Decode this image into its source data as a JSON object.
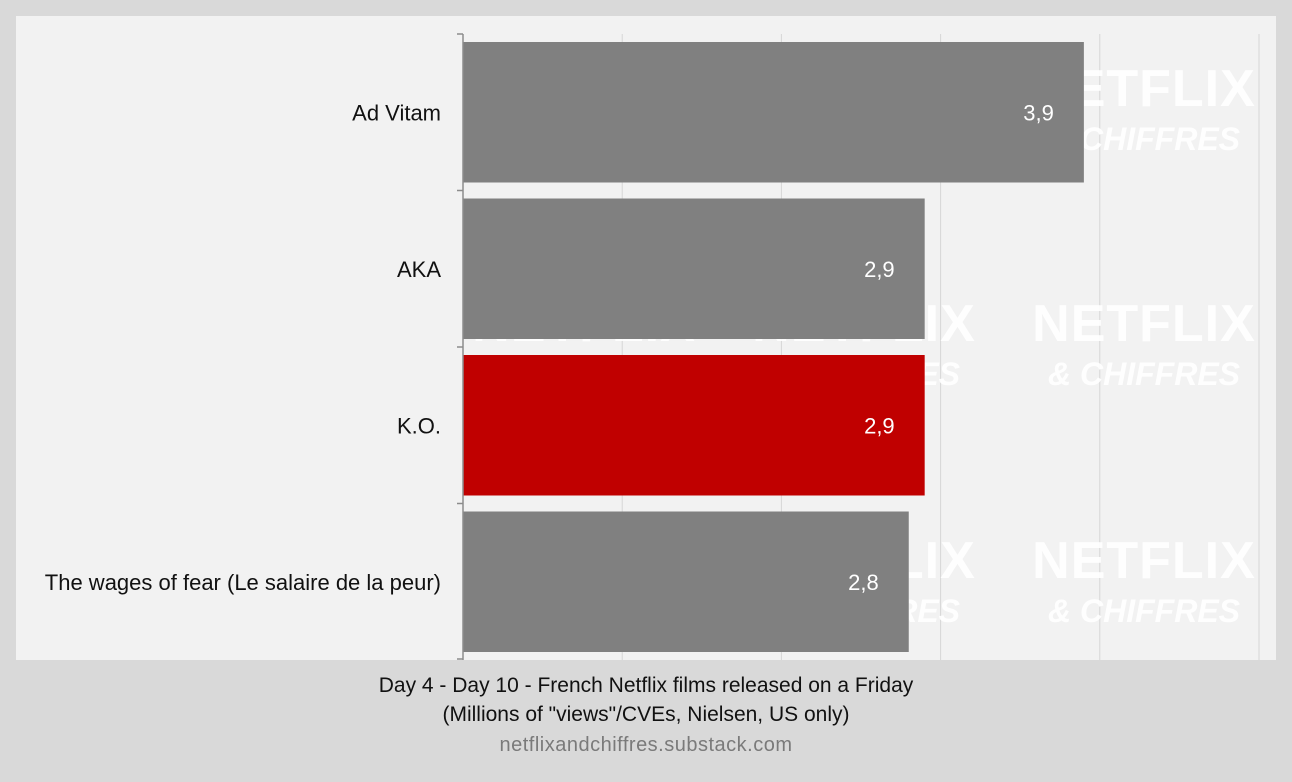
{
  "chart_data": {
    "type": "bar",
    "orientation": "horizontal",
    "categories": [
      "Ad Vitam",
      "AKA",
      "K.O.",
      "The wages of fear (Le salaire de la peur)"
    ],
    "values": [
      3.9,
      2.9,
      2.9,
      2.8
    ],
    "value_labels": [
      "3,9",
      "2,9",
      "2,9",
      "2,8"
    ],
    "bar_colors": [
      "#808080",
      "#808080",
      "#c00000",
      "#808080"
    ],
    "xlim": [
      0,
      5
    ],
    "grid": true,
    "title": "Day 4 - Day 10 - French Netflix films released on a Friday",
    "subtitle": "(Millions of \"views\"/CVEs, Nielsen, US only)",
    "source": "netflixandchiffres.substack.com"
  },
  "watermark": {
    "line1": "NETFLIX",
    "line2": "& CHIFFRES"
  },
  "colors": {
    "panel": "#f2f2f2",
    "background": "#d9d9d9",
    "grid": "#d6d6d6",
    "axis": "#8c8c8c",
    "bar_default": "#808080",
    "bar_highlight": "#c00000"
  }
}
